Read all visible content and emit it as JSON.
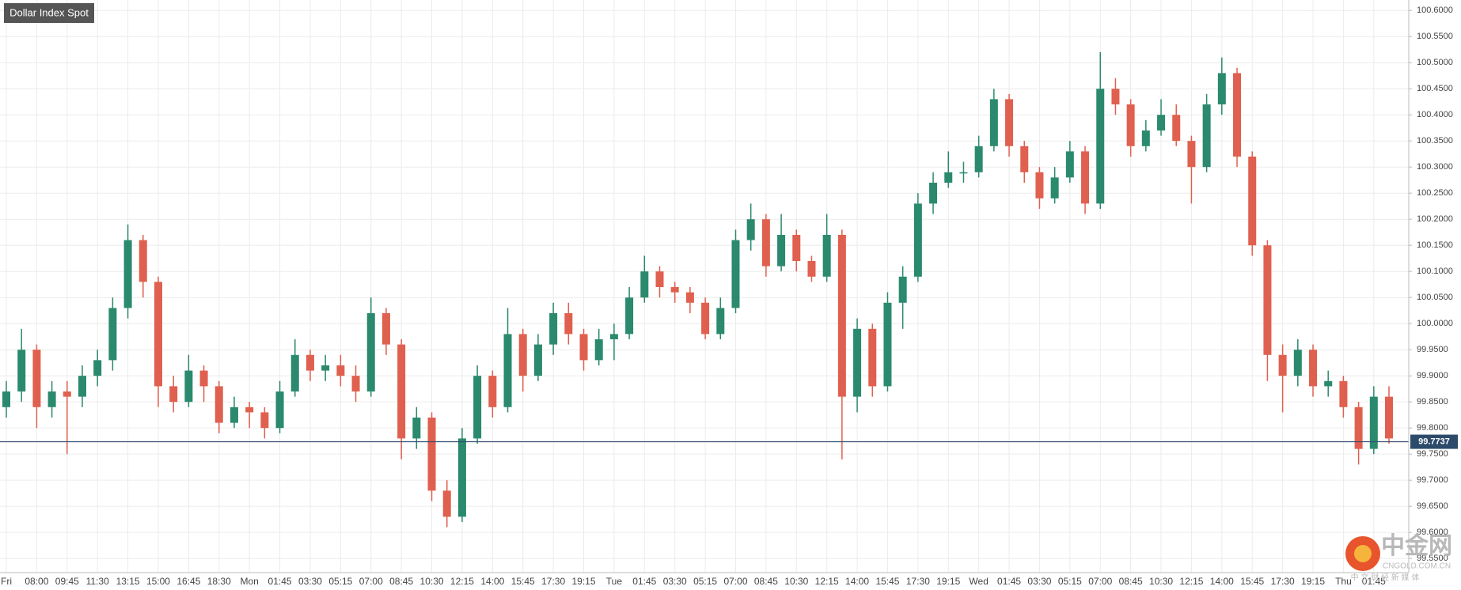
{
  "chart_data": {
    "type": "candlestick",
    "title": "Dollar Index Spot",
    "categories": [
      "Fri",
      null,
      "08:00",
      null,
      "09:45",
      null,
      "11:30",
      null,
      "13:15",
      null,
      "15:00",
      null,
      "16:45",
      null,
      "18:30",
      null,
      "Mon",
      null,
      "01:45",
      null,
      "03:30",
      null,
      "05:15",
      null,
      "07:00",
      null,
      "08:45",
      null,
      "10:30",
      null,
      "12:15",
      null,
      "14:00",
      null,
      "15:45",
      null,
      "17:30",
      null,
      "19:15",
      null,
      "Tue",
      null,
      "01:45",
      null,
      "03:30",
      null,
      "05:15",
      null,
      "07:00",
      null,
      "08:45",
      null,
      "10:30",
      null,
      "12:15",
      null,
      "14:00",
      null,
      "15:45",
      null,
      "17:30",
      null,
      "19:15",
      null,
      "Wed",
      null,
      "01:45",
      null,
      "03:30",
      null,
      "05:15",
      null,
      "07:00",
      null,
      "08:45",
      null,
      "10:30",
      null,
      "12:15",
      null,
      "14:00",
      null,
      "15:45",
      null,
      "17:30",
      null,
      "19:15",
      null,
      "Thu",
      null,
      "01:45",
      null
    ],
    "open": [
      99.84,
      99.87,
      99.95,
      99.84,
      99.87,
      99.86,
      99.9,
      99.93,
      100.03,
      100.16,
      100.08,
      99.88,
      99.85,
      99.91,
      99.88,
      99.81,
      99.84,
      99.83,
      99.8,
      99.87,
      99.94,
      99.91,
      99.92,
      99.9,
      99.87,
      100.02,
      99.96,
      99.78,
      99.82,
      99.68,
      99.63,
      99.78,
      99.9,
      99.84,
      99.98,
      99.9,
      99.96,
      100.02,
      99.98,
      99.93,
      99.97,
      99.98,
      100.05,
      100.1,
      100.07,
      100.06,
      100.04,
      99.98,
      100.03,
      100.16,
      100.2,
      100.11,
      100.17,
      100.12,
      100.09,
      100.17,
      99.86,
      99.99,
      99.88,
      100.04,
      100.09,
      100.23,
      100.27,
      100.29,
      100.29,
      100.34,
      100.43,
      100.34,
      100.29,
      100.24,
      100.28,
      100.33,
      100.23,
      100.45,
      100.42,
      100.34,
      100.37,
      100.4,
      100.35,
      100.3,
      100.42,
      100.48,
      100.32,
      100.15,
      99.94,
      99.9,
      99.95,
      99.88,
      99.89,
      99.84,
      99.76,
      99.86
    ],
    "high": [
      99.89,
      99.99,
      99.96,
      99.89,
      99.89,
      99.92,
      99.95,
      100.05,
      100.19,
      100.17,
      100.09,
      99.9,
      99.94,
      99.92,
      99.89,
      99.86,
      99.85,
      99.84,
      99.89,
      99.97,
      99.95,
      99.94,
      99.94,
      99.92,
      100.05,
      100.03,
      99.97,
      99.84,
      99.83,
      99.7,
      99.8,
      99.92,
      99.91,
      100.03,
      99.99,
      99.98,
      100.04,
      100.04,
      99.99,
      99.99,
      100.0,
      100.07,
      100.13,
      100.11,
      100.08,
      100.07,
      100.05,
      100.05,
      100.18,
      100.23,
      100.21,
      100.21,
      100.18,
      100.13,
      100.21,
      100.18,
      100.01,
      100.0,
      100.06,
      100.11,
      100.25,
      100.29,
      100.33,
      100.31,
      100.36,
      100.45,
      100.44,
      100.35,
      100.3,
      100.3,
      100.35,
      100.34,
      100.52,
      100.47,
      100.43,
      100.39,
      100.43,
      100.42,
      100.36,
      100.44,
      100.51,
      100.49,
      100.33,
      100.16,
      99.96,
      99.97,
      99.96,
      99.91,
      99.9,
      99.85,
      99.88,
      99.88
    ],
    "low": [
      99.82,
      99.85,
      99.8,
      99.82,
      99.75,
      99.84,
      99.88,
      99.91,
      100.01,
      100.05,
      99.84,
      99.83,
      99.84,
      99.85,
      99.79,
      99.8,
      99.8,
      99.78,
      99.79,
      99.86,
      99.89,
      99.89,
      99.88,
      99.85,
      99.86,
      99.94,
      99.74,
      99.76,
      99.66,
      99.61,
      99.62,
      99.77,
      99.82,
      99.83,
      99.87,
      99.89,
      99.94,
      99.96,
      99.91,
      99.92,
      99.93,
      99.97,
      100.04,
      100.05,
      100.04,
      100.02,
      99.97,
      99.97,
      100.02,
      100.14,
      100.09,
      100.1,
      100.1,
      100.08,
      100.08,
      99.74,
      99.83,
      99.86,
      99.87,
      99.99,
      100.08,
      100.21,
      100.26,
      100.27,
      100.28,
      100.33,
      100.32,
      100.27,
      100.22,
      100.23,
      100.27,
      100.21,
      100.22,
      100.4,
      100.32,
      100.33,
      100.36,
      100.34,
      100.23,
      100.29,
      100.4,
      100.3,
      100.13,
      99.89,
      99.83,
      99.88,
      99.86,
      99.86,
      99.82,
      99.73,
      99.75,
      99.77
    ],
    "close": [
      99.87,
      99.95,
      99.84,
      99.87,
      99.86,
      99.9,
      99.93,
      100.03,
      100.16,
      100.08,
      99.88,
      99.85,
      99.91,
      99.88,
      99.81,
      99.84,
      99.83,
      99.8,
      99.87,
      99.94,
      99.91,
      99.92,
      99.9,
      99.87,
      100.02,
      99.96,
      99.78,
      99.82,
      99.68,
      99.63,
      99.78,
      99.9,
      99.84,
      99.98,
      99.9,
      99.96,
      100.02,
      99.98,
      99.93,
      99.97,
      99.98,
      100.05,
      100.1,
      100.07,
      100.06,
      100.04,
      99.98,
      100.03,
      100.16,
      100.2,
      100.11,
      100.17,
      100.12,
      100.09,
      100.17,
      99.86,
      99.99,
      99.88,
      100.04,
      100.09,
      100.23,
      100.27,
      100.29,
      100.29,
      100.34,
      100.43,
      100.34,
      100.29,
      100.24,
      100.28,
      100.33,
      100.23,
      100.45,
      100.42,
      100.34,
      100.37,
      100.4,
      100.35,
      100.3,
      100.42,
      100.48,
      100.32,
      100.15,
      99.94,
      99.9,
      99.95,
      99.88,
      99.89,
      99.84,
      99.76,
      99.86,
      99.78
    ],
    "up_color": "#2b8a6e",
    "down_color": "#e0604f",
    "ylim": [
      99.523,
      100.62
    ],
    "yticks": [
      {
        "value": 99.55,
        "label": "99.5500"
      },
      {
        "value": 99.6,
        "label": "99.6000"
      },
      {
        "value": 99.65,
        "label": "99.6500"
      },
      {
        "value": 99.7,
        "label": "99.7000"
      },
      {
        "value": 99.75,
        "label": "99.7500"
      },
      {
        "value": 99.8,
        "label": "99.8000"
      },
      {
        "value": 99.85,
        "label": "99.8500"
      },
      {
        "value": 99.9,
        "label": "99.9000"
      },
      {
        "value": 99.95,
        "label": "99.9500"
      },
      {
        "value": 100.0,
        "label": "100.0000"
      },
      {
        "value": 100.05,
        "label": "100.0500"
      },
      {
        "value": 100.1,
        "label": "100.1000"
      },
      {
        "value": 100.15,
        "label": "100.1500"
      },
      {
        "value": 100.2,
        "label": "100.2000"
      },
      {
        "value": 100.25,
        "label": "100.2500"
      },
      {
        "value": 100.3,
        "label": "100.3000"
      },
      {
        "value": 100.35,
        "label": "100.3500"
      },
      {
        "value": 100.4,
        "label": "100.4000"
      },
      {
        "value": 100.45,
        "label": "100.4500"
      },
      {
        "value": 100.5,
        "label": "100.5000"
      },
      {
        "value": 100.55,
        "label": "100.5500"
      },
      {
        "value": 100.6,
        "label": "100.6000"
      }
    ],
    "grid": true,
    "last_price": 99.7737,
    "last_price_color": "#2c4a6a"
  },
  "watermark": {
    "brand": "中金网",
    "domain": "CNGOLD.COM.CN",
    "slogan": "中 文 财 经 新 媒 体"
  }
}
